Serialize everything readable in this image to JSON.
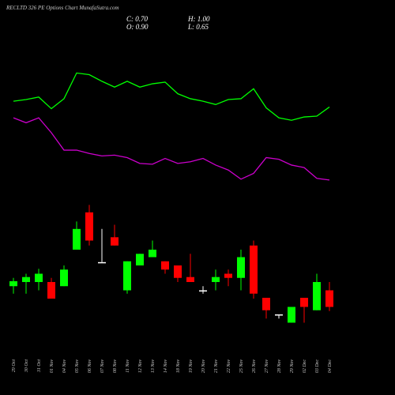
{
  "chart_data": {
    "type": "candlestick",
    "title": "RECLTD 326 PE Options Chart MunafaSutra.com",
    "info": [
      "C: 0.70",
      "H: 1.00",
      "O: 0.90",
      "L: 0.65"
    ],
    "categories": [
      "29 Oct",
      "30 Oct",
      "31 Oct",
      "01 Nov",
      "04 Nov",
      "05 Nov",
      "06 Nov",
      "07 Nov",
      "08 Nov",
      "11 Nov",
      "12 Nov",
      "13 Nov",
      "14 Nov",
      "18 Nov",
      "19 Nov",
      "20 Nov",
      "21 Nov",
      "22 Nov",
      "25 Nov",
      "26 Nov",
      "27 Nov",
      "28 Nov",
      "29 Nov",
      "02 Dec",
      "03 Dec",
      "04 Dec"
    ],
    "open": [
      0.95,
      1.0,
      1.0,
      1.0,
      0.95,
      1.39,
      1.84,
      1.24,
      1.54,
      0.9,
      1.2,
      1.3,
      1.25,
      1.2,
      1.06,
      0.9,
      1.0,
      1.1,
      1.05,
      1.44,
      0.81,
      0.61,
      0.51,
      0.81,
      0.66,
      0.9
    ],
    "high": [
      1.05,
      1.1,
      1.16,
      1.05,
      1.2,
      1.73,
      1.93,
      1.64,
      1.69,
      1.25,
      1.34,
      1.5,
      1.25,
      1.2,
      1.34,
      0.95,
      1.15,
      1.15,
      1.39,
      1.5,
      0.81,
      0.61,
      0.7,
      0.81,
      1.1,
      1.0
    ],
    "low": [
      0.86,
      0.86,
      0.9,
      0.8,
      0.95,
      1.39,
      1.44,
      1.24,
      1.44,
      0.86,
      1.2,
      1.3,
      1.1,
      1.0,
      1.0,
      0.86,
      0.9,
      0.95,
      0.9,
      0.8,
      0.56,
      0.56,
      0.51,
      0.51,
      0.66,
      0.65
    ],
    "close": [
      1.01,
      1.06,
      1.1,
      0.8,
      1.15,
      1.64,
      1.5,
      1.24,
      1.44,
      1.25,
      1.34,
      1.39,
      1.15,
      1.05,
      1.0,
      0.9,
      1.06,
      1.05,
      1.3,
      0.86,
      0.66,
      0.61,
      0.7,
      0.7,
      1.0,
      0.7
    ],
    "up_color": "#00ff00",
    "down_color": "#ff0000",
    "flat_color": "#ffffff",
    "lines": [
      {
        "color": "#00ff00",
        "values": [
          3.18,
          3.2,
          3.23,
          3.09,
          3.21,
          3.52,
          3.5,
          3.42,
          3.35,
          3.42,
          3.35,
          3.39,
          3.41,
          3.27,
          3.21,
          3.18,
          3.14,
          3.2,
          3.21,
          3.33,
          3.1,
          2.98,
          2.95,
          2.99,
          3.0,
          3.11
        ]
      },
      {
        "color": "#cc00cc",
        "values": [
          2.98,
          2.92,
          2.98,
          2.8,
          2.59,
          2.59,
          2.55,
          2.52,
          2.53,
          2.5,
          2.43,
          2.42,
          2.49,
          2.43,
          2.45,
          2.49,
          2.41,
          2.35,
          2.24,
          2.31,
          2.5,
          2.48,
          2.41,
          2.38,
          2.25,
          2.23
        ]
      }
    ],
    "ylim": [
      0,
      4.4
    ]
  }
}
